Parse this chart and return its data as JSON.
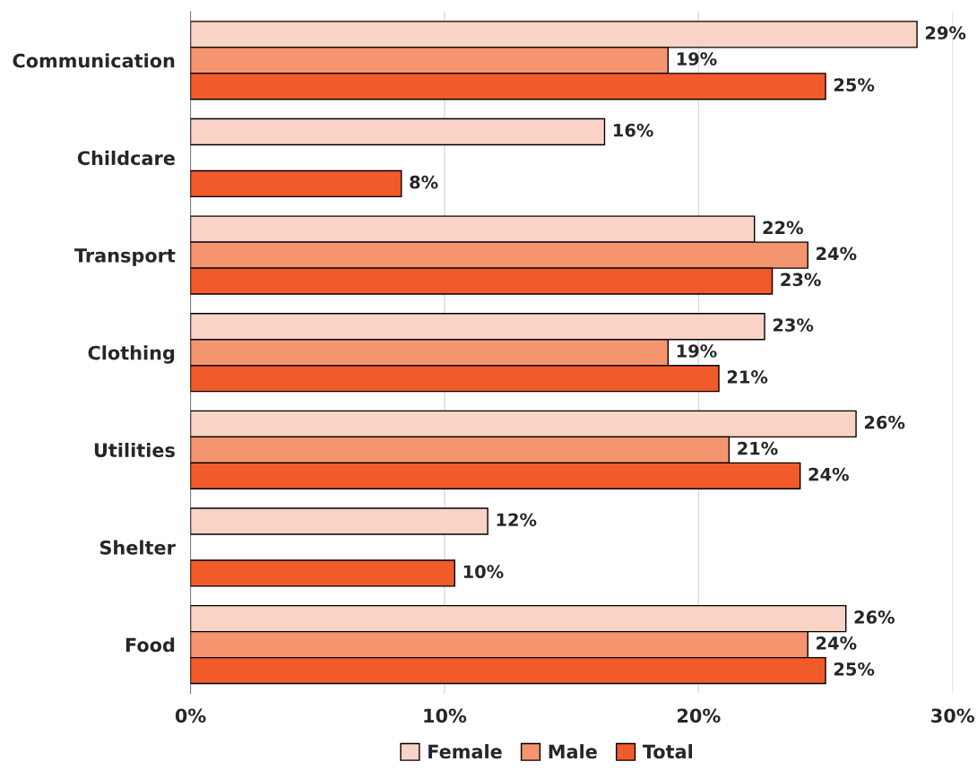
{
  "chart_data": {
    "type": "bar",
    "orientation": "horizontal",
    "categories": [
      "Communication",
      "Childcare",
      "Transport",
      "Clothing",
      "Utilities",
      "Shelter",
      "Food"
    ],
    "series": [
      {
        "name": "Female",
        "color": "#f9d3c5",
        "values": [
          28.6,
          16.3,
          22.2,
          22.6,
          26.2,
          11.7,
          25.8
        ],
        "value_labels": [
          "29%",
          "16%",
          "22%",
          "23%",
          "26%",
          "12%",
          "26%"
        ]
      },
      {
        "name": "Male",
        "color": "#f4956f",
        "values": [
          18.8,
          null,
          24.3,
          18.8,
          21.2,
          null,
          24.3
        ],
        "value_labels": [
          "19%",
          null,
          "24%",
          "19%",
          "21%",
          null,
          "24%"
        ]
      },
      {
        "name": "Total",
        "color": "#f15a29",
        "values": [
          25.0,
          8.3,
          22.9,
          20.8,
          24.0,
          10.4,
          25.0
        ],
        "value_labels": [
          "25%",
          "8%",
          "23%",
          "21%",
          "24%",
          "10%",
          "25%"
        ]
      }
    ],
    "xlim": [
      0,
      30
    ],
    "xticks": [
      {
        "value": 0,
        "label": "0%"
      },
      {
        "value": 10,
        "label": "10%"
      },
      {
        "value": 20,
        "label": "20%"
      },
      {
        "value": 30,
        "label": "30%"
      }
    ],
    "grid": "x",
    "legend": "bottom"
  }
}
